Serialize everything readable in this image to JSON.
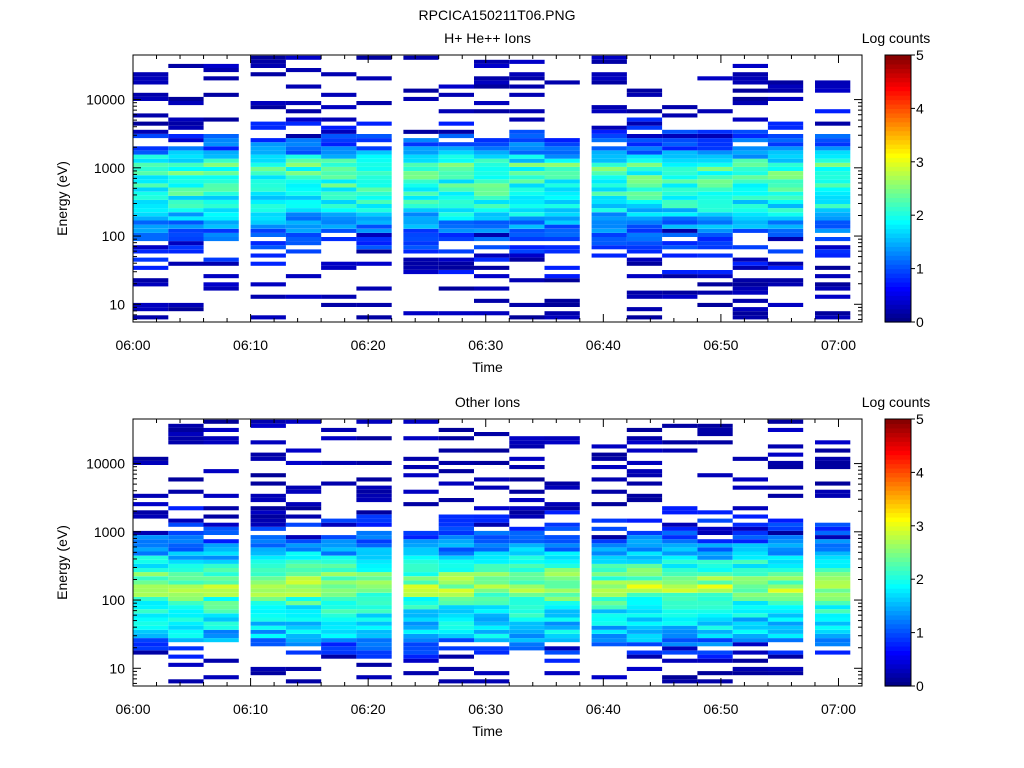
{
  "figure_title": "RPCICA150211T06.PNG",
  "chart_data": [
    {
      "type": "heatmap",
      "title": "H+ He++ Ions",
      "xlabel": "Time",
      "ylabel": "Energy (eV)",
      "x_ticks": [
        "06:00",
        "06:10",
        "06:20",
        "06:30",
        "06:40",
        "06:50",
        "07:00"
      ],
      "xlim": [
        "06:00",
        "07:02"
      ],
      "y_scale": "log",
      "y_ticks": [
        "10",
        "100",
        "1000",
        "10000"
      ],
      "ylim": [
        5.5,
        45000
      ],
      "colorbar": {
        "label": "Log counts",
        "ticks": [
          "0",
          "1",
          "2",
          "3",
          "4",
          "5"
        ],
        "range": [
          0,
          5
        ]
      },
      "time_columns": [
        "06:00",
        "06:03",
        "06:06",
        "06:10",
        "06:13",
        "06:16",
        "06:19",
        "06:23",
        "06:26",
        "06:29",
        "06:32",
        "06:35",
        "06:39",
        "06:42",
        "06:45",
        "06:48",
        "06:51",
        "06:54",
        "06:58"
      ],
      "energy_profile": [
        {
          "energy_eV": 10,
          "log_counts": 0.3
        },
        {
          "energy_eV": 18,
          "log_counts": 0.3
        },
        {
          "energy_eV": 30,
          "log_counts": 0.4
        },
        {
          "energy_eV": 60,
          "log_counts": 0.6
        },
        {
          "energy_eV": 100,
          "log_counts": 0.9
        },
        {
          "energy_eV": 160,
          "log_counts": 1.4
        },
        {
          "energy_eV": 250,
          "log_counts": 1.8
        },
        {
          "energy_eV": 400,
          "log_counts": 2.0
        },
        {
          "energy_eV": 700,
          "log_counts": 2.1
        },
        {
          "energy_eV": 1100,
          "log_counts": 2.2
        },
        {
          "energy_eV": 1800,
          "log_counts": 1.2
        },
        {
          "energy_eV": 4000,
          "log_counts": 0.5
        },
        {
          "energy_eV": 15000,
          "log_counts": 0.3
        },
        {
          "energy_eV": 40000,
          "log_counts": 0.2
        }
      ],
      "peak_log_counts": 2.6,
      "background": "sparse single-count stripes above 2000 eV and below 100 eV"
    },
    {
      "type": "heatmap",
      "title": "Other Ions",
      "xlabel": "Time",
      "ylabel": "Energy (eV)",
      "x_ticks": [
        "06:00",
        "06:10",
        "06:20",
        "06:30",
        "06:40",
        "06:50",
        "07:00"
      ],
      "xlim": [
        "06:00",
        "07:02"
      ],
      "y_scale": "log",
      "y_ticks": [
        "10",
        "100",
        "1000",
        "10000"
      ],
      "ylim": [
        5.5,
        45000
      ],
      "colorbar": {
        "label": "Log counts",
        "ticks": [
          "0",
          "1",
          "2",
          "3",
          "4",
          "5"
        ],
        "range": [
          0,
          5
        ]
      },
      "time_columns": [
        "06:00",
        "06:03",
        "06:06",
        "06:10",
        "06:13",
        "06:16",
        "06:19",
        "06:23",
        "06:26",
        "06:29",
        "06:32",
        "06:35",
        "06:39",
        "06:42",
        "06:45",
        "06:48",
        "06:51",
        "06:54",
        "06:58"
      ],
      "energy_profile": [
        {
          "energy_eV": 10,
          "log_counts": 0.2
        },
        {
          "energy_eV": 20,
          "log_counts": 0.8
        },
        {
          "energy_eV": 30,
          "log_counts": 1.6
        },
        {
          "energy_eV": 50,
          "log_counts": 1.7
        },
        {
          "energy_eV": 100,
          "log_counts": 2.2
        },
        {
          "energy_eV": 150,
          "log_counts": 2.7
        },
        {
          "energy_eV": 250,
          "log_counts": 2.3
        },
        {
          "energy_eV": 450,
          "log_counts": 1.6
        },
        {
          "energy_eV": 900,
          "log_counts": 0.9
        },
        {
          "energy_eV": 2000,
          "log_counts": 0.4
        },
        {
          "energy_eV": 13000,
          "log_counts": 0.1
        }
      ],
      "peak_log_counts": 3.4,
      "background": "isolated single-count cells near 13000 eV and 40000 eV, dark blue blocks near 10 eV"
    }
  ]
}
